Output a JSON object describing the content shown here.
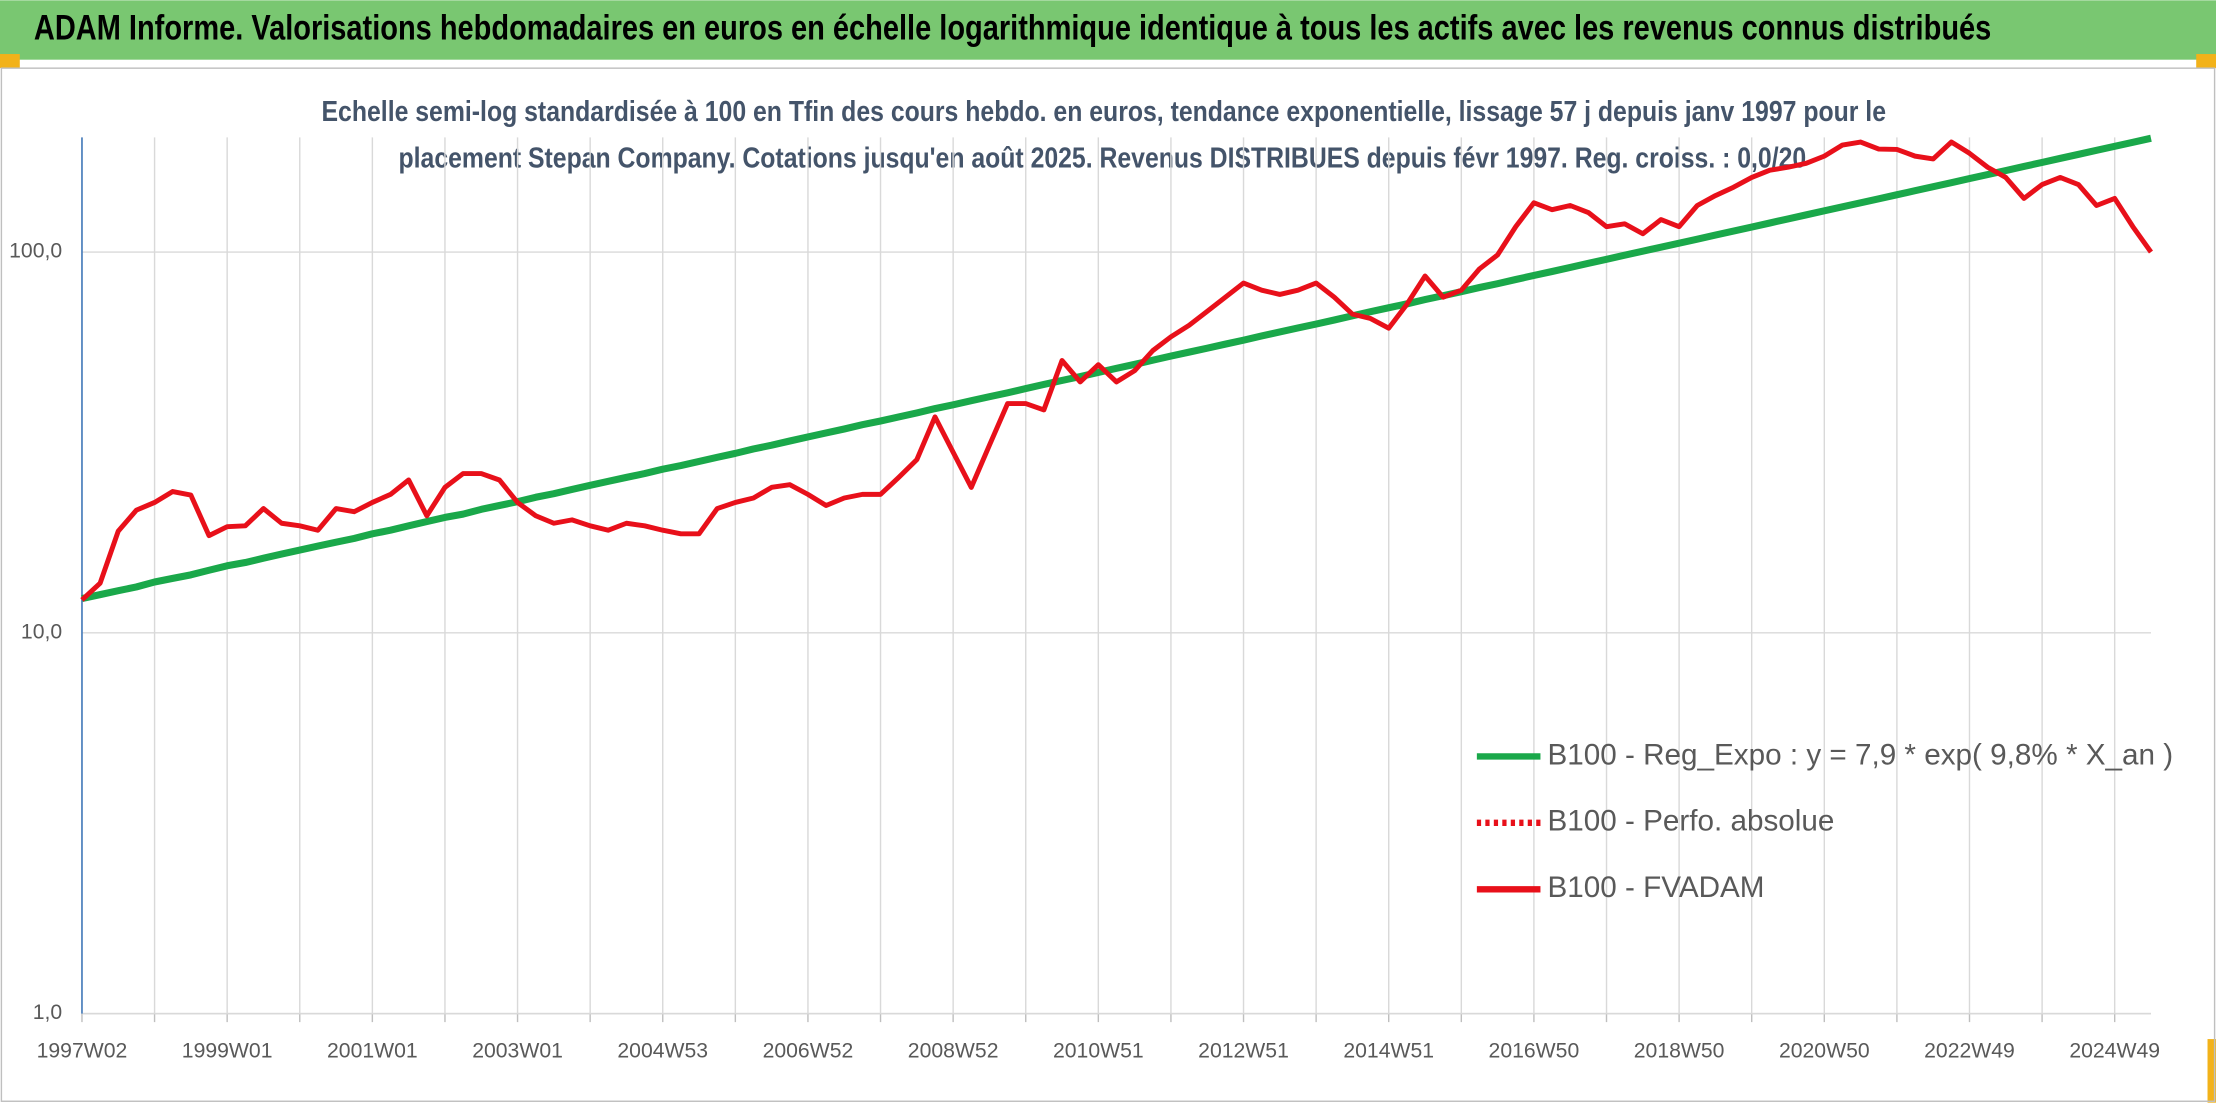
{
  "chart_data": {
    "type": "line",
    "title": "ADAM Informe. Valorisations hebdomadaires en euros en échelle logarithmique identique à tous les actifs avec les revenus connus distribués",
    "subtitle": [
      "Echelle semi-log standardisée à 100 en Tfin des cours hebdo. en euros, tendance exponentielle, lissage 57 j depuis janv 1997 pour le",
      "placement Stepan Company. Cotations jusqu'en août 2025. Revenus DISTRIBUES depuis févr 1997. Reg. croiss. : 0,0/20"
    ],
    "categories": [
      "1997W02",
      null,
      null,
      null,
      null,
      null,
      null,
      null,
      "1999W01",
      null,
      null,
      null,
      null,
      null,
      null,
      null,
      "2001W01",
      null,
      null,
      null,
      null,
      null,
      null,
      null,
      "2003W01",
      null,
      null,
      null,
      null,
      null,
      null,
      null,
      "2004W53",
      null,
      null,
      null,
      null,
      null,
      null,
      null,
      "2006W52",
      null,
      null,
      null,
      null,
      null,
      null,
      null,
      "2008W52",
      null,
      null,
      null,
      null,
      null,
      null,
      null,
      "2010W51",
      null,
      null,
      null,
      null,
      null,
      null,
      null,
      "2012W51",
      null,
      null,
      null,
      null,
      null,
      null,
      null,
      "2014W51",
      null,
      null,
      null,
      null,
      null,
      null,
      null,
      "2016W50",
      null,
      null,
      null,
      null,
      null,
      null,
      null,
      "2018W50",
      null,
      null,
      null,
      null,
      null,
      null,
      null,
      "2020W50",
      null,
      null,
      null,
      null,
      null,
      null,
      null,
      "2022W49",
      null,
      null,
      null,
      null,
      null,
      null,
      null,
      "2024W49",
      null,
      null
    ],
    "series": [
      {
        "name": "B100 - Reg_Expo : y = 7,9 * exp( 9,8% *  X_an )",
        "color": "#1aa84a",
        "dash": "solid",
        "values": [
          12.3,
          12.6,
          12.9,
          13.2,
          13.6,
          13.9,
          14.2,
          14.6,
          15.0,
          15.3,
          15.7,
          16.1,
          16.5,
          16.9,
          17.3,
          17.7,
          18.2,
          18.6,
          19.1,
          19.6,
          20.1,
          20.5,
          21.1,
          21.6,
          22.1,
          22.7,
          23.2,
          23.8,
          24.4,
          25.0,
          25.6,
          26.2,
          26.9,
          27.5,
          28.2,
          28.9,
          29.6,
          30.4,
          31.1,
          31.9,
          32.7,
          33.5,
          34.3,
          35.2,
          36.0,
          36.9,
          37.8,
          38.8,
          39.7,
          40.7,
          41.7,
          42.7,
          43.8,
          44.9,
          46.0,
          47.1,
          48.3,
          49.5,
          50.7,
          52.0,
          53.3,
          54.6,
          55.9,
          57.3,
          58.7,
          60.2,
          61.7,
          63.2,
          64.7,
          66.3,
          68.0,
          69.7,
          71.4,
          73.1,
          75.0,
          76.8,
          78.7,
          80.7,
          82.6,
          84.7,
          86.8,
          88.9,
          91.1,
          93.4,
          95.7,
          98.1,
          100.5,
          103.0,
          105.5,
          108.1,
          110.8,
          113.5,
          116.3,
          119.2,
          122.2,
          125.2,
          128.3,
          131.5,
          134.7,
          138.0,
          141.4,
          144.9,
          148.5,
          152.1,
          155.9,
          159.8,
          163.7,
          167.8,
          171.9,
          176.2,
          180.5,
          185.0,
          189.5,
          194.2,
          199.0
        ]
      },
      {
        "name": "B100 - Perfo. absolue",
        "color": "#e8101a",
        "dash": "dotted"
      },
      {
        "name": "B100 - FVADAM",
        "color": "#e8101a",
        "dash": "solid",
        "values": [
          12.2,
          13.5,
          18.5,
          21,
          22,
          23.5,
          23,
          18,
          19,
          19.1,
          21.2,
          19.4,
          19.1,
          18.6,
          21.2,
          20.8,
          22,
          23.1,
          25.2,
          20.3,
          24.1,
          26.2,
          26.2,
          25.2,
          22,
          20.3,
          19.4,
          19.8,
          19.1,
          18.6,
          19.4,
          19.1,
          18.6,
          18.2,
          18.2,
          21.2,
          22,
          22.6,
          24.1,
          24.5,
          23.1,
          21.6,
          22.6,
          23.1,
          23.1,
          25.6,
          28.5,
          36.9,
          29.8,
          24.1,
          31.1,
          40,
          40,
          38.5,
          51.9,
          45.6,
          50.6,
          45.6,
          48.8,
          55.1,
          59.9,
          64.2,
          69.9,
          76.1,
          82.9,
          79.4,
          77.4,
          79.4,
          82.9,
          76.1,
          68.7,
          66.9,
          63.1,
          72.9,
          86.5,
          76.1,
          79.4,
          90.3,
          98.3,
          116.6,
          134.7,
          129.2,
          132.5,
          127,
          116.6,
          118.6,
          111.7,
          121.7,
          116.6,
          132.5,
          140.7,
          148,
          157,
          164,
          167,
          171,
          178.6,
          191,
          194.5,
          186.4,
          186,
          178.6,
          175.6,
          194.5,
          181.7,
          167,
          157,
          138.3,
          150.4,
          157,
          150.4,
          132.5,
          138.3,
          116.6,
          100
        ]
      }
    ],
    "log_scale": true,
    "grid": true,
    "ylim": [
      1,
      200
    ],
    "yticks": [
      {
        "value": 1,
        "label": "1,0"
      },
      {
        "value": 10,
        "label": "10,0"
      },
      {
        "value": 100,
        "label": "100,0"
      }
    ],
    "legend": "lower right"
  }
}
